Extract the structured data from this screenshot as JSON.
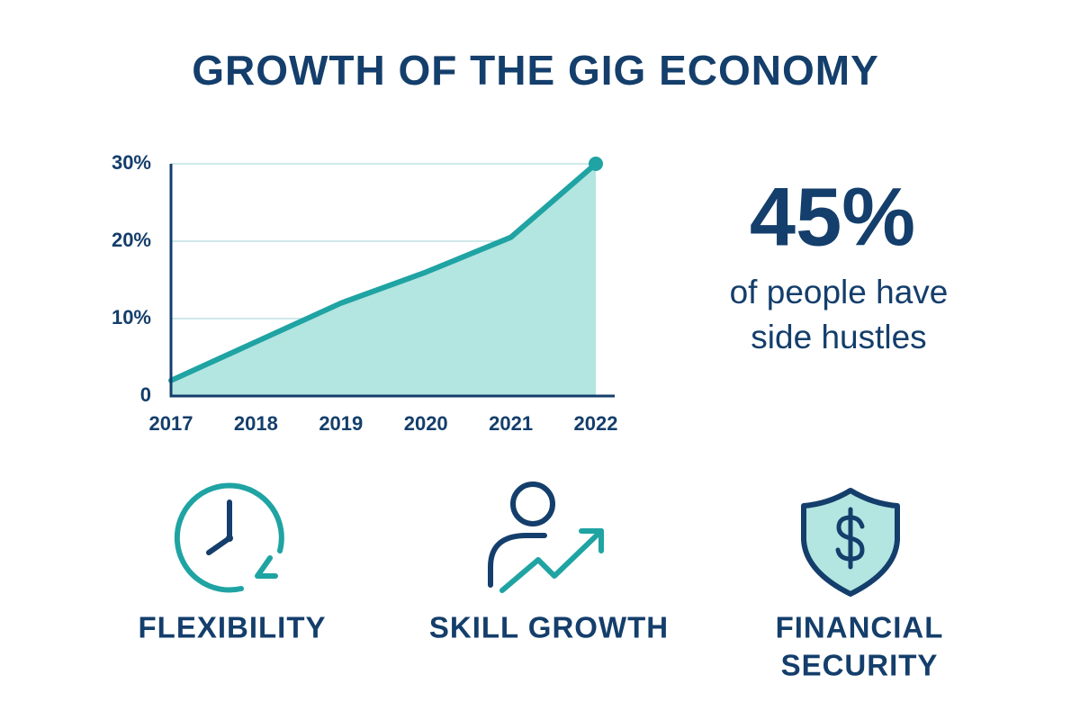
{
  "title": "GROWTH OF THE GIG ECONOMY",
  "chart_data": {
    "type": "area",
    "x": [
      2017,
      2018,
      2019,
      2020,
      2021,
      2022
    ],
    "values": [
      2,
      7,
      12,
      16,
      20.5,
      30
    ],
    "color": "#1fa3a3",
    "fill_color": "#b3e5e1",
    "xlim": [
      2017,
      2022
    ],
    "xticks": [
      2017,
      2018,
      2019,
      2020,
      2021,
      2022
    ],
    "ylim": [
      0,
      30
    ],
    "yticks": [
      0,
      {
        "value": 10,
        "label": "10%"
      },
      {
        "value": 20,
        "label": "20%"
      },
      {
        "value": 30,
        "label": "30%"
      }
    ],
    "grid": true
  },
  "stat": {
    "figure": "45%",
    "lines": [
      "of people have",
      "side hustles"
    ]
  },
  "features": [
    [
      "FLEXIBILITY"
    ],
    [
      "SKILL GROWTH"
    ],
    [
      "FINANCIAL",
      "SECURITY"
    ]
  ]
}
